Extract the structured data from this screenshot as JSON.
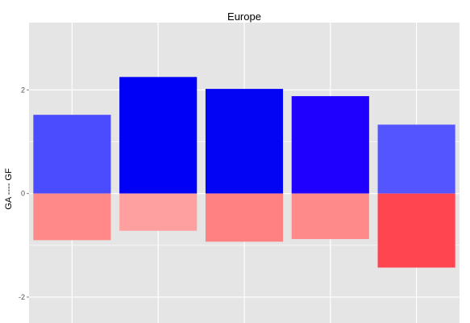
{
  "chart_data": {
    "type": "bar",
    "title": "Europe",
    "xlabel": "",
    "ylabel": "GA ---- GF",
    "ylim": [
      -2.5,
      3.3
    ],
    "y_ticks": [
      -2,
      0,
      2
    ],
    "y_tick_labels": [
      "-2",
      "0",
      "2"
    ],
    "grid": true,
    "legend": "none",
    "bars": [
      {
        "gf": 1.52,
        "ga": -0.9,
        "gf_color": "#4C4CFF",
        "ga_color": "#FF8888"
      },
      {
        "gf": 2.25,
        "ga": -0.72,
        "gf_color": "#0000F7",
        "ga_color": "#FFA0A0"
      },
      {
        "gf": 2.02,
        "ga": -0.93,
        "gf_color": "#0404F5",
        "ga_color": "#FF8181"
      },
      {
        "gf": 1.88,
        "ga": -0.88,
        "gf_color": "#1F00FF",
        "ga_color": "#FF8A8A"
      },
      {
        "gf": 1.33,
        "ga": -1.43,
        "gf_color": "#5555FF",
        "ga_color": "#FF4550"
      }
    ],
    "colors": {
      "panel_background": "#E5E5E5",
      "grid": "#FFFFFF",
      "tick": "#7F7F7F"
    }
  }
}
